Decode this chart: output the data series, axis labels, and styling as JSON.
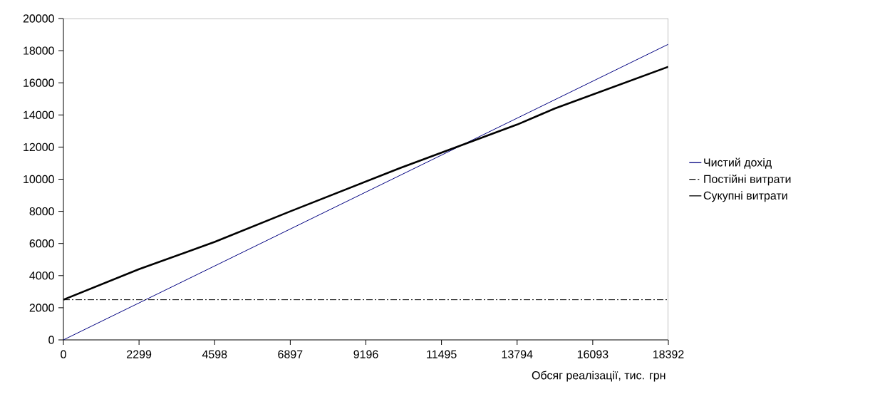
{
  "chart_data": {
    "type": "line",
    "xlabel": "Обсяг реалізації, тис. грн",
    "xlim": [
      0,
      18392
    ],
    "xticks": [
      0,
      2299,
      4598,
      6897,
      9196,
      11495,
      13794,
      16093,
      18392
    ],
    "ylim": [
      0,
      20000
    ],
    "yticks": [
      0,
      2000,
      4000,
      6000,
      8000,
      10000,
      12000,
      14000,
      16000,
      18000,
      20000
    ],
    "legend": "right",
    "grid": false,
    "series": [
      {
        "name": "Чистий дохід",
        "color": "#000080",
        "x": [
          0,
          18392
        ],
        "values": [
          0,
          18400
        ],
        "line_style": "solid"
      },
      {
        "name": "Постійні витрати",
        "color": "#000000",
        "x": [
          0,
          18392
        ],
        "values": [
          2500,
          2500
        ],
        "line_style": "dashdot"
      },
      {
        "name": "Сукупні витрати",
        "color": "#000000",
        "x": [
          0,
          2299,
          4598,
          6897,
          10240,
          13794,
          14940,
          18392
        ],
        "values": [
          2500,
          4400,
          6100,
          8000,
          10700,
          13400,
          14400,
          17000
        ],
        "line_style": "solid"
      }
    ]
  }
}
